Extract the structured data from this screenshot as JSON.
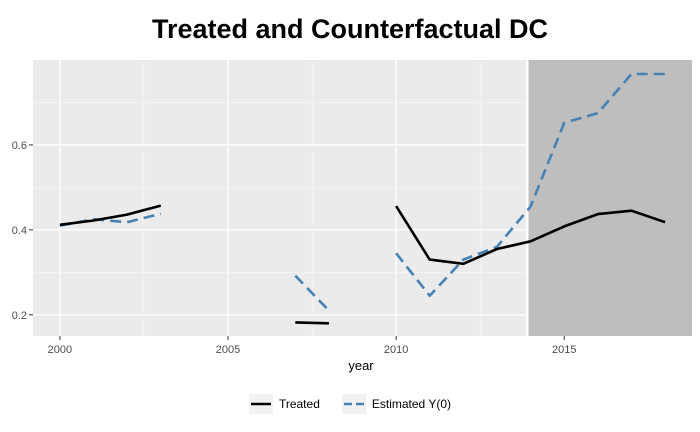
{
  "chart_data": {
    "type": "line",
    "title": "Treated and Counterfactual DC",
    "xlabel": "year",
    "ylabel": "",
    "xlim": [
      1999.2,
      2018.8
    ],
    "ylim": [
      0.15,
      0.8
    ],
    "x_ticks": [
      2000,
      2005,
      2010,
      2015
    ],
    "x_tick_labels": [
      "2000",
      "2005",
      "2010",
      "2015"
    ],
    "y_ticks": [
      0.2,
      0.4,
      0.6
    ],
    "y_tick_labels": [
      "0.2",
      "0.4",
      "0.6"
    ],
    "treatment_start": 2013.9,
    "grid": true,
    "legend_position": "bottom",
    "series": [
      {
        "name": "Treated",
        "color": "#000000",
        "style": "solid",
        "segments": [
          [
            [
              2000,
              0.412
            ],
            [
              2001,
              0.422
            ],
            [
              2002,
              0.436
            ],
            [
              2003,
              0.457
            ]
          ],
          [
            [
              2007,
              0.182
            ],
            [
              2008,
              0.18
            ]
          ],
          [
            [
              2010,
              0.456
            ],
            [
              2011,
              0.33
            ],
            [
              2012,
              0.32
            ],
            [
              2013,
              0.355
            ],
            [
              2014,
              0.373
            ],
            [
              2015,
              0.408
            ],
            [
              2016,
              0.437
            ],
            [
              2017,
              0.445
            ],
            [
              2018,
              0.418
            ]
          ]
        ]
      },
      {
        "name": "Estimated Y(0)",
        "color": "#4682b4",
        "style": "dashed",
        "segments": [
          [
            [
              2000,
              0.41
            ],
            [
              2001,
              0.425
            ],
            [
              2002,
              0.418
            ],
            [
              2003,
              0.438
            ]
          ],
          [
            [
              2007,
              0.292
            ],
            [
              2008,
              0.21
            ]
          ],
          [
            [
              2010,
              0.345
            ],
            [
              2011,
              0.245
            ],
            [
              2012,
              0.33
            ],
            [
              2013,
              0.36
            ],
            [
              2014,
              0.455
            ],
            [
              2015,
              0.652
            ],
            [
              2016,
              0.675
            ],
            [
              2017,
              0.767
            ],
            [
              2018,
              0.767
            ]
          ]
        ]
      }
    ]
  }
}
